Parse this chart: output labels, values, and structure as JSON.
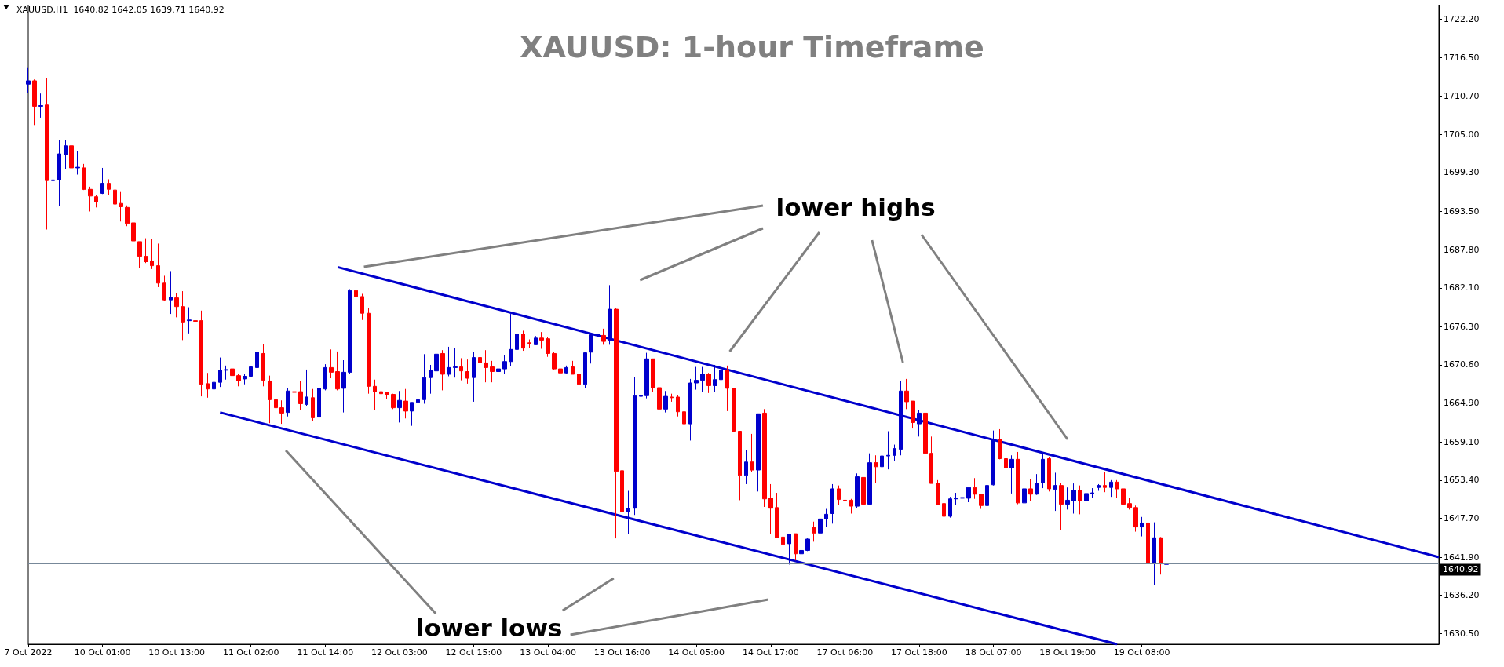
{
  "chart_data": {
    "type": "candlestick",
    "title": "XAUUSD: 1-hour Timeframe",
    "subtitle": "XAUUSD,H1  1640.82 1642.05 1639.71 1640.92",
    "annotations": [
      "lower highs",
      "lower lows"
    ],
    "categories": [
      "7 Oct 2022",
      null,
      null,
      null,
      null,
      null,
      null,
      null,
      null,
      null,
      null,
      null,
      "10 Oct 01:00",
      null,
      null,
      null,
      null,
      null,
      null,
      null,
      null,
      null,
      null,
      null,
      "10 Oct 13:00",
      null,
      null,
      null,
      null,
      null,
      null,
      null,
      null,
      null,
      null,
      null,
      "11 Oct 02:00",
      null,
      null,
      null,
      null,
      null,
      null,
      null,
      null,
      null,
      null,
      null,
      "11 Oct 14:00",
      null,
      null,
      null,
      null,
      null,
      null,
      null,
      null,
      null,
      null,
      null,
      "12 Oct 03:00",
      null,
      null,
      null,
      null,
      null,
      null,
      null,
      null,
      null,
      null,
      null,
      "12 Oct 15:00",
      null,
      null,
      null,
      null,
      null,
      null,
      null,
      null,
      null,
      null,
      null,
      "13 Oct 04:00",
      null,
      null,
      null,
      null,
      null,
      null,
      null,
      null,
      null,
      null,
      null,
      "13 Oct 16:00",
      null,
      null,
      null,
      null,
      null,
      null,
      null,
      null,
      null,
      null,
      null,
      "14 Oct 05:00",
      null,
      null,
      null,
      null,
      null,
      null,
      null,
      null,
      null,
      null,
      null,
      "14 Oct 17:00",
      null,
      null,
      null,
      null,
      null,
      null,
      null,
      null,
      null,
      null,
      null,
      "17 Oct 06:00",
      null,
      null,
      null,
      null,
      null,
      null,
      null,
      null,
      null,
      null,
      null,
      "17 Oct 18:00",
      null,
      null,
      null,
      null,
      null,
      null,
      null,
      null,
      null,
      null,
      null,
      "18 Oct 07:00",
      null,
      null,
      null,
      null,
      null,
      null,
      null,
      null,
      null,
      null,
      null,
      "18 Oct 19:00",
      null,
      null,
      null,
      null,
      null,
      null,
      null,
      null,
      null,
      null,
      null,
      "19 Oct 08:00",
      null,
      null,
      null,
      null,
      null,
      null,
      null,
      null,
      null,
      null,
      null,
      null,
      null,
      null,
      null,
      null,
      null,
      null,
      null,
      null,
      null,
      null,
      null,
      null,
      null,
      null,
      null,
      null,
      null,
      null,
      null,
      null,
      null,
      null,
      null,
      null,
      null,
      null,
      null,
      null,
      null,
      null,
      null,
      null,
      null,
      null,
      null,
      null
    ],
    "ohlc": [
      [
        1712.5,
        1714.9,
        1711.2,
        1713.0
      ],
      [
        1713.0,
        1713.2,
        1706.4,
        1709.2
      ],
      [
        1709.2,
        1711.1,
        1707.5,
        1709.3
      ],
      [
        1709.4,
        1713.4,
        1690.8,
        1698.1
      ],
      [
        1698.1,
        1705.0,
        1696.2,
        1698.2
      ],
      [
        1698.2,
        1704.2,
        1694.3,
        1702.1
      ],
      [
        1702.0,
        1704.2,
        1699.8,
        1703.3
      ],
      [
        1703.3,
        1707.3,
        1699.5,
        1700.0
      ],
      [
        1700.0,
        1702.5,
        1699.0,
        1700.1
      ],
      [
        1700.0,
        1700.6,
        1696.7,
        1696.8
      ],
      [
        1696.8,
        1697.2,
        1693.5,
        1695.8
      ],
      [
        1695.7,
        1695.9,
        1694.1,
        1694.9
      ],
      [
        1696.2,
        1700.0,
        1696.1,
        1697.7
      ],
      [
        1697.7,
        1698.3,
        1696.0,
        1696.8
      ],
      [
        1696.7,
        1697.3,
        1692.9,
        1694.6
      ],
      [
        1694.7,
        1696.4,
        1692.0,
        1694.2
      ],
      [
        1694.1,
        1694.4,
        1691.3,
        1691.7
      ],
      [
        1691.8,
        1691.9,
        1687.2,
        1689.1
      ],
      [
        1689.0,
        1689.0,
        1685.1,
        1686.8
      ],
      [
        1686.8,
        1689.5,
        1685.8,
        1686.0
      ],
      [
        1686.1,
        1689.4,
        1684.9,
        1685.4
      ],
      [
        1685.4,
        1688.7,
        1682.2,
        1682.8
      ],
      [
        1682.8,
        1683.9,
        1680.2,
        1680.3
      ],
      [
        1680.3,
        1684.6,
        1678.2,
        1680.7
      ],
      [
        1680.6,
        1681.3,
        1677.7,
        1679.3
      ],
      [
        1679.3,
        1681.6,
        1674.3,
        1677.0
      ],
      [
        1677.2,
        1679.2,
        1675.3,
        1677.3
      ],
      [
        1677.2,
        1678.8,
        1672.3,
        1677.1
      ],
      [
        1677.2,
        1678.7,
        1665.9,
        1667.7
      ],
      [
        1667.8,
        1669.4,
        1665.7,
        1667.0
      ],
      [
        1667.0,
        1668.7,
        1666.9,
        1668.0
      ],
      [
        1668.0,
        1671.7,
        1667.3,
        1669.8
      ],
      [
        1669.8,
        1670.5,
        1668.4,
        1669.9
      ],
      [
        1670.0,
        1671.1,
        1667.8,
        1669.0
      ],
      [
        1669.0,
        1669.2,
        1667.4,
        1668.2
      ],
      [
        1668.5,
        1669.2,
        1667.7,
        1668.9
      ],
      [
        1668.9,
        1670.4,
        1668.9,
        1670.3
      ],
      [
        1670.2,
        1673.0,
        1668.1,
        1672.5
      ],
      [
        1672.3,
        1673.7,
        1667.4,
        1668.3
      ],
      [
        1668.2,
        1669.0,
        1661.9,
        1665.4
      ],
      [
        1665.4,
        1667.3,
        1664.0,
        1664.2
      ],
      [
        1664.2,
        1665.3,
        1661.8,
        1663.4
      ],
      [
        1663.5,
        1667.1,
        1662.9,
        1666.7
      ],
      [
        1666.6,
        1669.7,
        1664.0,
        1666.5
      ],
      [
        1666.6,
        1668.2,
        1663.9,
        1664.8
      ],
      [
        1664.7,
        1669.9,
        1664.5,
        1665.8
      ],
      [
        1665.7,
        1667.0,
        1662.2,
        1662.7
      ],
      [
        1662.8,
        1667.1,
        1661.2,
        1667.1
      ],
      [
        1667.0,
        1670.7,
        1666.8,
        1670.2
      ],
      [
        1670.2,
        1672.9,
        1668.6,
        1669.5
      ],
      [
        1669.6,
        1672.6,
        1666.8,
        1667.0
      ],
      [
        1667.1,
        1671.3,
        1663.5,
        1669.5
      ],
      [
        1669.5,
        1681.9,
        1669.3,
        1681.7
      ],
      [
        1681.7,
        1684.0,
        1679.2,
        1680.8
      ],
      [
        1680.8,
        1681.2,
        1677.3,
        1678.3
      ],
      [
        1678.3,
        1679.1,
        1666.3,
        1667.4
      ],
      [
        1667.4,
        1668.4,
        1663.9,
        1666.6
      ],
      [
        1666.6,
        1667.5,
        1666.0,
        1666.3
      ],
      [
        1666.5,
        1666.6,
        1665.5,
        1666.2
      ],
      [
        1666.2,
        1666.3,
        1664.0,
        1664.2
      ],
      [
        1664.2,
        1666.7,
        1662.0,
        1665.3
      ],
      [
        1665.2,
        1667.0,
        1662.6,
        1663.7
      ],
      [
        1663.7,
        1665.0,
        1661.5,
        1665.0
      ],
      [
        1665.0,
        1666.1,
        1663.8,
        1665.4
      ],
      [
        1665.4,
        1672.2,
        1664.8,
        1668.7
      ],
      [
        1668.7,
        1670.6,
        1666.3,
        1669.8
      ],
      [
        1669.7,
        1675.3,
        1668.4,
        1672.2
      ],
      [
        1672.3,
        1672.8,
        1666.8,
        1669.2
      ],
      [
        1669.2,
        1673.3,
        1668.9,
        1670.2
      ],
      [
        1670.2,
        1673.1,
        1668.7,
        1670.3
      ],
      [
        1670.3,
        1671.6,
        1668.3,
        1669.7
      ],
      [
        1669.6,
        1671.4,
        1667.8,
        1668.6
      ],
      [
        1668.7,
        1672.5,
        1665.1,
        1671.7
      ],
      [
        1671.7,
        1673.2,
        1667.4,
        1670.9
      ],
      [
        1670.9,
        1672.8,
        1668.0,
        1670.2
      ],
      [
        1670.3,
        1671.2,
        1668.0,
        1669.6
      ],
      [
        1669.6,
        1670.5,
        1667.9,
        1670.0
      ],
      [
        1670.0,
        1672.1,
        1669.2,
        1671.1
      ],
      [
        1671.1,
        1678.2,
        1670.4,
        1672.9
      ],
      [
        1672.9,
        1675.8,
        1671.9,
        1675.2
      ],
      [
        1675.2,
        1675.7,
        1672.7,
        1673.1
      ],
      [
        1673.9,
        1674.4,
        1673.1,
        1673.8
      ],
      [
        1673.6,
        1674.9,
        1673.6,
        1674.6
      ],
      [
        1674.6,
        1675.5,
        1673.0,
        1674.3
      ],
      [
        1674.5,
        1674.8,
        1671.8,
        1672.3
      ],
      [
        1672.3,
        1672.5,
        1669.8,
        1670.0
      ],
      [
        1670.0,
        1670.1,
        1669.2,
        1669.4
      ],
      [
        1669.4,
        1670.5,
        1669.2,
        1670.2
      ],
      [
        1670.3,
        1671.2,
        1669.2,
        1669.2
      ],
      [
        1669.2,
        1670.8,
        1667.3,
        1667.7
      ],
      [
        1667.7,
        1672.5,
        1667.2,
        1672.4
      ],
      [
        1672.5,
        1675.2,
        1670.8,
        1675.1
      ],
      [
        1675.0,
        1678.0,
        1674.6,
        1675.2
      ],
      [
        1675.0,
        1676.0,
        1673.6,
        1674.1
      ],
      [
        1674.3,
        1682.5,
        1673.6,
        1678.9
      ],
      [
        1678.9,
        1679.1,
        1644.7,
        1654.7
      ],
      [
        1654.8,
        1656.5,
        1642.4,
        1648.7
      ],
      [
        1648.7,
        1651.8,
        1645.4,
        1649.2
      ],
      [
        1649.2,
        1668.8,
        1648.2,
        1666.0
      ],
      [
        1665.9,
        1668.8,
        1663.1,
        1666.0
      ],
      [
        1666.0,
        1672.4,
        1665.6,
        1671.5
      ],
      [
        1671.5,
        1671.5,
        1666.6,
        1667.2
      ],
      [
        1667.2,
        1667.9,
        1663.8,
        1664.0
      ],
      [
        1664.0,
        1666.7,
        1663.5,
        1665.9
      ],
      [
        1665.8,
        1666.3,
        1665.1,
        1665.7
      ],
      [
        1665.8,
        1666.1,
        1662.9,
        1663.6
      ],
      [
        1663.6,
        1664.9,
        1661.7,
        1661.8
      ],
      [
        1661.8,
        1668.5,
        1659.3,
        1667.9
      ],
      [
        1667.9,
        1670.3,
        1666.9,
        1668.3
      ],
      [
        1668.3,
        1670.3,
        1666.5,
        1669.2
      ],
      [
        1669.2,
        1669.4,
        1666.4,
        1667.5
      ],
      [
        1667.5,
        1670.6,
        1666.5,
        1668.4
      ],
      [
        1668.4,
        1671.9,
        1668.2,
        1669.8
      ],
      [
        1669.8,
        1670.5,
        1663.7,
        1667.1
      ],
      [
        1667.1,
        1667.2,
        1660.6,
        1660.7
      ],
      [
        1660.7,
        1660.7,
        1650.4,
        1654.1
      ],
      [
        1654.1,
        1657.9,
        1652.8,
        1656.1
      ],
      [
        1656.1,
        1660.3,
        1654.6,
        1654.9
      ],
      [
        1654.9,
        1663.3,
        1651.7,
        1663.3
      ],
      [
        1663.4,
        1664.0,
        1649.4,
        1650.6
      ],
      [
        1650.7,
        1652.8,
        1645.4,
        1649.2
      ],
      [
        1649.3,
        1651.5,
        1644.8,
        1644.8
      ],
      [
        1644.9,
        1648.9,
        1641.4,
        1643.8
      ],
      [
        1643.9,
        1645.4,
        1640.8,
        1645.3
      ],
      [
        1645.4,
        1645.4,
        1641.4,
        1642.4
      ],
      [
        1642.4,
        1643.5,
        1640.3,
        1642.9
      ],
      [
        1642.9,
        1644.7,
        1642.8,
        1644.6
      ],
      [
        1646.3,
        1647.2,
        1644.2,
        1645.5
      ],
      [
        1645.5,
        1647.7,
        1645.3,
        1647.6
      ],
      [
        1647.6,
        1649.1,
        1646.4,
        1648.3
      ],
      [
        1648.4,
        1652.8,
        1646.9,
        1652.1
      ],
      [
        1652.1,
        1652.6,
        1649.7,
        1650.5
      ],
      [
        1650.4,
        1651.0,
        1649.4,
        1650.3
      ],
      [
        1650.4,
        1650.6,
        1648.4,
        1649.5
      ],
      [
        1649.5,
        1654.4,
        1649.2,
        1653.9
      ],
      [
        1653.8,
        1653.8,
        1648.7,
        1649.8
      ],
      [
        1649.8,
        1657.4,
        1649.8,
        1656.0
      ],
      [
        1656.0,
        1657.1,
        1653.0,
        1655.4
      ],
      [
        1655.4,
        1658.0,
        1654.7,
        1657.0
      ],
      [
        1657.0,
        1660.7,
        1655.0,
        1657.1
      ],
      [
        1657.1,
        1658.7,
        1656.3,
        1658.1
      ],
      [
        1658.0,
        1668.2,
        1657.1,
        1666.7
      ],
      [
        1666.7,
        1668.5,
        1664.0,
        1665.1
      ],
      [
        1665.2,
        1665.2,
        1661.1,
        1662.0
      ],
      [
        1661.8,
        1663.9,
        1659.9,
        1663.4
      ],
      [
        1663.4,
        1663.4,
        1657.3,
        1657.4
      ],
      [
        1657.4,
        1659.9,
        1652.9,
        1652.9
      ],
      [
        1652.9,
        1653.4,
        1649.7,
        1649.7
      ],
      [
        1649.9,
        1649.9,
        1647.0,
        1648.0
      ],
      [
        1648.0,
        1650.9,
        1647.8,
        1650.6
      ],
      [
        1650.6,
        1651.5,
        1649.7,
        1650.7
      ],
      [
        1650.7,
        1651.5,
        1649.9,
        1650.8
      ],
      [
        1650.7,
        1652.4,
        1650.1,
        1652.3
      ],
      [
        1652.3,
        1653.7,
        1650.6,
        1651.3
      ],
      [
        1651.3,
        1651.3,
        1649.1,
        1649.6
      ],
      [
        1649.6,
        1653.1,
        1649.0,
        1652.6
      ],
      [
        1652.7,
        1660.8,
        1652.6,
        1659.5
      ],
      [
        1659.5,
        1661.0,
        1656.5,
        1656.6
      ],
      [
        1656.6,
        1656.8,
        1653.4,
        1655.2
      ],
      [
        1655.2,
        1657.1,
        1651.4,
        1656.5
      ],
      [
        1656.5,
        1657.6,
        1649.8,
        1650.0
      ],
      [
        1650.0,
        1653.5,
        1648.8,
        1652.1
      ],
      [
        1652.1,
        1653.5,
        1650.3,
        1651.3
      ],
      [
        1651.3,
        1654.3,
        1651.2,
        1652.9
      ],
      [
        1653.0,
        1657.6,
        1652.2,
        1656.5
      ],
      [
        1656.6,
        1656.9,
        1651.7,
        1652.1
      ],
      [
        1652.0,
        1654.5,
        1648.8,
        1652.6
      ],
      [
        1652.6,
        1653.0,
        1646.0,
        1649.8
      ],
      [
        1649.8,
        1652.3,
        1649.0,
        1650.4
      ],
      [
        1650.3,
        1652.9,
        1648.4,
        1651.9
      ],
      [
        1651.9,
        1652.6,
        1648.3,
        1650.3
      ],
      [
        1650.3,
        1652.2,
        1649.2,
        1651.4
      ],
      [
        1651.4,
        1652.2,
        1650.8,
        1651.5
      ],
      [
        1652.3,
        1652.8,
        1651.8,
        1652.6
      ],
      [
        1652.6,
        1654.6,
        1651.6,
        1652.3
      ],
      [
        1652.3,
        1653.4,
        1650.9,
        1653.1
      ],
      [
        1653.1,
        1653.4,
        1650.7,
        1652.1
      ],
      [
        1652.1,
        1652.7,
        1649.7,
        1649.8
      ],
      [
        1649.9,
        1650.8,
        1649.0,
        1649.3
      ],
      [
        1649.3,
        1649.6,
        1645.7,
        1646.4
      ],
      [
        1646.4,
        1647.9,
        1645.0,
        1647.0
      ],
      [
        1647.0,
        1647.0,
        1640.0,
        1641.0
      ],
      [
        1641.0,
        1647.1,
        1637.8,
        1644.8
      ],
      [
        1644.8,
        1644.9,
        1639.3,
        1640.9
      ],
      [
        1640.82,
        1642.05,
        1639.71,
        1640.92
      ],
      null,
      null,
      null,
      null,
      null,
      null,
      null,
      null,
      null,
      null,
      null,
      null,
      null,
      null,
      null,
      null,
      null,
      null,
      null,
      null,
      null,
      null,
      null,
      null,
      null,
      null,
      null,
      null,
      null,
      null,
      null,
      null,
      null,
      null,
      null,
      null,
      null,
      null,
      null,
      null,
      null,
      null,
      null,
      null
    ],
    "colors": [
      "#0000cc",
      "#ff0000",
      "#0000cc",
      "#ff0000",
      "#0000cc",
      "#0000cc",
      "#0000cc",
      "#ff0000",
      "#0000cc",
      "#ff0000",
      "#ff0000",
      "#ff0000",
      "#0000cc",
      "#ff0000",
      "#ff0000",
      "#ff0000",
      "#ff0000",
      "#ff0000",
      "#ff0000",
      "#ff0000",
      "#ff0000",
      "#ff0000",
      "#ff0000",
      "#0000cc",
      "#ff0000",
      "#ff0000",
      "#0000cc",
      "#ff0000",
      "#ff0000",
      "#ff0000",
      "#0000cc",
      "#0000cc",
      "#0000cc",
      "#ff0000",
      "#ff0000",
      "#0000cc",
      "#0000cc",
      "#0000cc",
      "#ff0000",
      "#ff0000",
      "#ff0000",
      "#ff0000",
      "#0000cc",
      "#ff0000",
      "#ff0000",
      "#0000cc",
      "#ff0000",
      "#0000cc",
      "#0000cc",
      "#ff0000",
      "#ff0000",
      "#0000cc",
      "#0000cc",
      "#ff0000",
      "#ff0000",
      "#ff0000",
      "#ff0000",
      "#ff0000",
      "#ff0000",
      "#ff0000",
      "#0000cc",
      "#ff0000",
      "#0000cc",
      "#0000cc",
      "#0000cc",
      "#0000cc",
      "#0000cc",
      "#ff0000",
      "#0000cc",
      "#0000cc",
      "#ff0000",
      "#ff0000",
      "#0000cc",
      "#ff0000",
      "#ff0000",
      "#ff0000",
      "#0000cc",
      "#0000cc",
      "#0000cc",
      "#0000cc",
      "#ff0000",
      "#ff0000",
      "#0000cc",
      "#ff0000",
      "#ff0000",
      "#ff0000",
      "#ff0000",
      "#0000cc",
      "#ff0000",
      "#ff0000",
      "#0000cc",
      "#0000cc",
      "#0000cc",
      "#ff0000",
      "#0000cc",
      "#ff0000",
      "#ff0000",
      "#0000cc",
      "#0000cc",
      "#0000cc",
      "#0000cc",
      "#ff0000",
      "#ff0000",
      "#0000cc",
      "#ff0000",
      "#ff0000",
      "#ff0000",
      "#0000cc",
      "#0000cc",
      "#0000cc",
      "#ff0000",
      "#0000cc",
      "#0000cc",
      "#ff0000",
      "#ff0000",
      "#ff0000",
      "#0000cc",
      "#ff0000",
      "#0000cc",
      "#ff0000",
      "#ff0000",
      "#ff0000",
      "#ff0000",
      "#0000cc",
      "#ff0000",
      "#0000cc",
      "#0000cc",
      "#ff0000",
      "#0000cc",
      "#0000cc",
      "#0000cc",
      "#ff0000",
      "#ff0000",
      "#ff0000",
      "#0000cc",
      "#ff0000",
      "#0000cc",
      "#ff0000",
      "#0000cc",
      "#0000cc",
      "#0000cc",
      "#0000cc",
      "#ff0000",
      "#ff0000",
      "#0000cc",
      "#ff0000",
      "#ff0000",
      "#ff0000",
      "#ff0000",
      "#0000cc",
      "#0000cc",
      "#0000cc",
      "#0000cc",
      "#ff0000",
      "#ff0000",
      "#0000cc",
      "#0000cc",
      "#ff0000",
      "#ff0000",
      "#0000cc",
      "#ff0000",
      "#0000cc",
      "#ff0000",
      "#0000cc",
      "#0000cc",
      "#ff0000",
      "#0000cc",
      "#ff0000",
      "#0000cc",
      "#0000cc",
      "#ff0000",
      "#0000cc",
      "#0000cc",
      "#0000cc",
      "#ff0000",
      "#0000cc",
      "#ff0000",
      "#ff0000",
      "#ff0000",
      "#ff0000",
      "#0000cc",
      "#ff0000",
      "#0000cc",
      "#ff0000",
      "#0000cc",
      null,
      null,
      null,
      null,
      null,
      null,
      null,
      null,
      null,
      null,
      null,
      null,
      null,
      null,
      null,
      null,
      null,
      null,
      null,
      null,
      null,
      null,
      null,
      null,
      null,
      null,
      null,
      null,
      null,
      null,
      null,
      null,
      null,
      null,
      null,
      null,
      null,
      null,
      null,
      null,
      null,
      null,
      null,
      null
    ],
    "series": [
      {
        "type": "line",
        "color": "#0000cc",
        "values": [
          null,
          null,
          null,
          null,
          null,
          null,
          null,
          null,
          null,
          null,
          null,
          null,
          null,
          null,
          null,
          null,
          null,
          null,
          null,
          null,
          null,
          null,
          null,
          null,
          null,
          null,
          null,
          null,
          null,
          null,
          null,
          null,
          null,
          null,
          null,
          null,
          null,
          null,
          null,
          null,
          null,
          null,
          null,
          null,
          null,
          null,
          null,
          null,
          null,
          null,
          1685.2,
          null,
          null,
          null,
          null,
          null,
          null,
          null,
          null,
          null,
          null,
          null,
          null,
          null,
          null,
          null,
          null,
          null,
          null,
          null,
          null,
          null,
          null,
          null,
          null,
          null,
          null,
          null,
          null,
          null,
          null,
          null,
          null,
          null,
          null,
          null,
          null,
          null,
          null,
          null,
          null,
          null,
          null,
          null,
          null,
          null,
          null,
          null,
          null,
          null,
          null,
          null,
          null,
          null,
          null,
          null,
          null,
          null,
          null,
          null,
          null,
          null,
          null,
          null,
          null,
          null,
          null,
          null,
          null,
          null,
          null,
          null,
          null,
          null,
          null,
          null,
          null,
          null,
          null,
          null,
          null,
          null,
          null,
          null,
          null,
          null,
          null,
          null,
          null,
          null,
          null,
          null,
          null,
          null,
          null,
          null,
          null,
          null,
          null,
          null,
          null,
          null,
          null,
          null,
          null,
          null,
          null,
          null,
          null,
          null,
          null,
          null,
          null,
          null,
          null,
          null,
          null,
          null,
          null,
          null,
          null,
          null,
          null,
          null,
          null,
          null,
          null,
          null,
          null,
          null,
          null,
          null,
          null,
          null,
          null,
          null,
          null,
          null,
          null,
          null,
          null,
          null,
          null,
          null,
          null,
          null,
          null,
          null,
          null,
          null,
          null,
          null,
          null,
          null,
          null,
          null,
          null,
          null,
          null,
          null,
          null,
          null,
          null,
          null,
          null,
          null,
          null,
          null,
          null,
          null,
          null,
          null,
          null,
          null,
          null,
          null,
          null,
          null,
          1641.9
        ]
      },
      {
        "type": "line",
        "color": "#0000cc",
        "values": [
          null,
          null,
          null,
          null,
          null,
          null,
          null,
          null,
          null,
          null,
          null,
          null,
          null,
          null,
          null,
          null,
          null,
          null,
          null,
          null,
          null,
          null,
          null,
          null,
          null,
          null,
          null,
          null,
          null,
          null,
          null,
          1663.5,
          null,
          null,
          null,
          null,
          null,
          null,
          null,
          null,
          null,
          null,
          null,
          null,
          null,
          null,
          null,
          null,
          null,
          null,
          null,
          null,
          null,
          null,
          null,
          null,
          null,
          null,
          null,
          null,
          null,
          null,
          null,
          null,
          null,
          null,
          null,
          null,
          null,
          null,
          null,
          null,
          null,
          null,
          null,
          null,
          null,
          null,
          null,
          null,
          null,
          null,
          null,
          null,
          null,
          null,
          null,
          null,
          null,
          null,
          null,
          null,
          null,
          null,
          null,
          null,
          null,
          null,
          null,
          null,
          null,
          null,
          null,
          null,
          null,
          null,
          null,
          null,
          null,
          null,
          null,
          null,
          null,
          null,
          null,
          null,
          null,
          null,
          null,
          null,
          null,
          null,
          null,
          null,
          null,
          null,
          null,
          null,
          null,
          null,
          null,
          null,
          null,
          null,
          null,
          null,
          null,
          null,
          null,
          null,
          null,
          null,
          null,
          null,
          null,
          null,
          null,
          null,
          null,
          null,
          null,
          null,
          null,
          null,
          null,
          null,
          null,
          null,
          null,
          null,
          null,
          null,
          null,
          null,
          null,
          null,
          null,
          null,
          null,
          null,
          null,
          null,
          null,
          null,
          null,
          null,
          1628.9,
          null,
          null,
          null,
          null,
          null,
          null,
          null,
          null,
          null,
          null,
          null,
          null,
          null,
          null,
          null,
          null,
          null,
          null,
          null,
          null,
          null,
          null,
          null,
          null,
          null,
          null,
          null,
          null,
          null,
          null,
          null,
          null,
          null,
          null,
          null,
          null,
          null,
          null,
          null,
          null,
          null,
          null,
          null,
          null,
          null,
          null,
          null,
          null,
          null,
          null,
          null,
          null
        ]
      }
    ],
    "ref_lines": [
      {
        "axis": "y",
        "value": 1640.92,
        "label": "1640.92",
        "color": "#778899"
      }
    ],
    "ylim": [
      1628.9,
      1724.3
    ],
    "yticks": [
      {
        "value": 1630.5,
        "label": "1630.50"
      },
      {
        "value": 1636.2,
        "label": "1636.20"
      },
      {
        "value": 1641.9,
        "label": "1641.90"
      },
      {
        "value": 1647.7,
        "label": "1647.70"
      },
      {
        "value": 1653.4,
        "label": "1653.40"
      },
      {
        "value": 1659.1,
        "label": "1659.10"
      },
      {
        "value": 1664.9,
        "label": "1664.90"
      },
      {
        "value": 1670.6,
        "label": "1670.60"
      },
      {
        "value": 1676.3,
        "label": "1676.30"
      },
      {
        "value": 1682.1,
        "label": "1682.10"
      },
      {
        "value": 1687.8,
        "label": "1687.80"
      },
      {
        "value": 1693.5,
        "label": "1693.50"
      },
      {
        "value": 1699.3,
        "label": "1699.30"
      },
      {
        "value": 1705.0,
        "label": "1705.00"
      },
      {
        "value": 1710.7,
        "label": "1710.70"
      },
      {
        "value": 1716.5,
        "label": "1716.50"
      },
      {
        "value": 1722.2,
        "label": "1722.20"
      }
    ],
    "grid": false
  }
}
